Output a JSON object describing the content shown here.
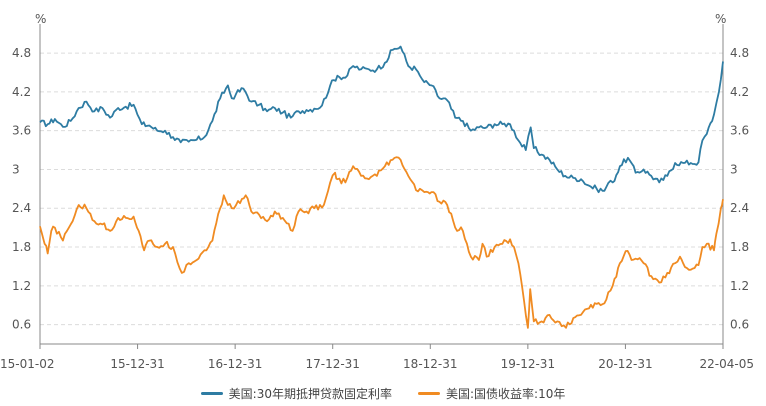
{
  "chart_data": {
    "type": "line",
    "title": "",
    "left_unit": "%",
    "right_unit": "%",
    "ylim": [
      0.3,
      5.25
    ],
    "y_ticks": [
      "0.6",
      "1.2",
      "1.8",
      "2.4",
      "3",
      "3.6",
      "4.2",
      "4.8"
    ],
    "x_ticks": [
      "15-01-02",
      "15-12-31",
      "16-12-31",
      "17-12-31",
      "18-12-31",
      "19-12-31",
      "20-12-31",
      "22-04-05"
    ],
    "grid": true,
    "legend_position": "bottom",
    "series": [
      {
        "name": "美国:30年期抵押贷款固定利率",
        "color": "#2e7ca3",
        "points": [
          [
            "2015-01-02",
            3.73
          ],
          [
            "2015-02-01",
            3.7
          ],
          [
            "2015-03-01",
            3.78
          ],
          [
            "2015-04-01",
            3.66
          ],
          [
            "2015-05-01",
            3.75
          ],
          [
            "2015-06-01",
            3.95
          ],
          [
            "2015-07-01",
            4.05
          ],
          [
            "2015-08-01",
            3.9
          ],
          [
            "2015-09-01",
            3.95
          ],
          [
            "2015-10-01",
            3.8
          ],
          [
            "2015-11-01",
            3.95
          ],
          [
            "2015-12-01",
            3.97
          ],
          [
            "2015-12-31",
            4.0
          ],
          [
            "2016-01-15",
            3.85
          ],
          [
            "2016-02-01",
            3.7
          ],
          [
            "2016-03-01",
            3.68
          ],
          [
            "2016-04-01",
            3.6
          ],
          [
            "2016-05-01",
            3.6
          ],
          [
            "2016-06-01",
            3.5
          ],
          [
            "2016-07-01",
            3.42
          ],
          [
            "2016-08-01",
            3.43
          ],
          [
            "2016-09-01",
            3.46
          ],
          [
            "2016-10-01",
            3.5
          ],
          [
            "2016-11-01",
            3.75
          ],
          [
            "2016-12-01",
            4.1
          ],
          [
            "2016-12-31",
            4.3
          ],
          [
            "2017-01-15",
            4.1
          ],
          [
            "2017-02-01",
            4.17
          ],
          [
            "2017-03-01",
            4.25
          ],
          [
            "2017-04-01",
            4.05
          ],
          [
            "2017-05-01",
            4.0
          ],
          [
            "2017-06-01",
            3.9
          ],
          [
            "2017-07-01",
            3.95
          ],
          [
            "2017-08-01",
            3.88
          ],
          [
            "2017-09-01",
            3.8
          ],
          [
            "2017-10-01",
            3.9
          ],
          [
            "2017-11-01",
            3.92
          ],
          [
            "2017-12-01",
            3.94
          ],
          [
            "2017-12-31",
            3.99
          ],
          [
            "2018-02-01",
            4.3
          ],
          [
            "2018-03-01",
            4.45
          ],
          [
            "2018-04-01",
            4.42
          ],
          [
            "2018-05-01",
            4.6
          ],
          [
            "2018-06-01",
            4.55
          ],
          [
            "2018-07-01",
            4.55
          ],
          [
            "2018-08-01",
            4.55
          ],
          [
            "2018-09-01",
            4.65
          ],
          [
            "2018-10-01",
            4.85
          ],
          [
            "2018-11-01",
            4.9
          ],
          [
            "2018-12-01",
            4.6
          ],
          [
            "2018-12-31",
            4.55
          ],
          [
            "2019-01-15",
            4.45
          ],
          [
            "2019-02-01",
            4.35
          ],
          [
            "2019-03-01",
            4.3
          ],
          [
            "2019-04-01",
            4.1
          ],
          [
            "2019-05-01",
            4.07
          ],
          [
            "2019-06-01",
            3.8
          ],
          [
            "2019-07-01",
            3.75
          ],
          [
            "2019-08-01",
            3.6
          ],
          [
            "2019-09-01",
            3.65
          ],
          [
            "2019-10-01",
            3.65
          ],
          [
            "2019-11-01",
            3.7
          ],
          [
            "2019-12-01",
            3.7
          ],
          [
            "2019-12-31",
            3.7
          ],
          [
            "2020-01-15",
            3.6
          ],
          [
            "2020-02-01",
            3.45
          ],
          [
            "2020-03-01",
            3.3
          ],
          [
            "2020-03-20",
            3.65
          ],
          [
            "2020-04-01",
            3.33
          ],
          [
            "2020-05-01",
            3.23
          ],
          [
            "2020-06-01",
            3.15
          ],
          [
            "2020-07-01",
            3.0
          ],
          [
            "2020-08-01",
            2.9
          ],
          [
            "2020-09-01",
            2.87
          ],
          [
            "2020-10-01",
            2.85
          ],
          [
            "2020-11-01",
            2.75
          ],
          [
            "2020-12-01",
            2.7
          ],
          [
            "2020-12-31",
            2.67
          ],
          [
            "2021-01-15",
            2.79
          ],
          [
            "2021-02-01",
            2.8
          ],
          [
            "2021-03-01",
            3.05
          ],
          [
            "2021-04-01",
            3.18
          ],
          [
            "2021-05-01",
            2.95
          ],
          [
            "2021-06-01",
            3.0
          ],
          [
            "2021-07-01",
            2.9
          ],
          [
            "2021-08-01",
            2.8
          ],
          [
            "2021-09-01",
            2.9
          ],
          [
            "2021-10-01",
            3.1
          ],
          [
            "2021-11-01",
            3.1
          ],
          [
            "2021-12-01",
            3.1
          ],
          [
            "2021-12-31",
            3.11
          ],
          [
            "2022-01-15",
            3.45
          ],
          [
            "2022-02-01",
            3.55
          ],
          [
            "2022-03-01",
            3.85
          ],
          [
            "2022-03-20",
            4.2
          ],
          [
            "2022-04-05",
            4.67
          ]
        ]
      },
      {
        "name": "美国:国债收益率:10年",
        "color": "#f08b22",
        "points": [
          [
            "2015-01-02",
            2.12
          ],
          [
            "2015-01-20",
            1.85
          ],
          [
            "2015-02-01",
            1.7
          ],
          [
            "2015-02-15",
            2.05
          ],
          [
            "2015-03-01",
            2.1
          ],
          [
            "2015-04-01",
            1.9
          ],
          [
            "2015-05-01",
            2.15
          ],
          [
            "2015-06-01",
            2.45
          ],
          [
            "2015-07-01",
            2.4
          ],
          [
            "2015-08-01",
            2.2
          ],
          [
            "2015-09-01",
            2.15
          ],
          [
            "2015-10-01",
            2.05
          ],
          [
            "2015-11-01",
            2.25
          ],
          [
            "2015-12-01",
            2.25
          ],
          [
            "2015-12-31",
            2.27
          ],
          [
            "2016-01-20",
            2.05
          ],
          [
            "2016-02-10",
            1.75
          ],
          [
            "2016-03-01",
            1.9
          ],
          [
            "2016-04-01",
            1.8
          ],
          [
            "2016-05-01",
            1.85
          ],
          [
            "2016-06-01",
            1.8
          ],
          [
            "2016-07-05",
            1.4
          ],
          [
            "2016-08-01",
            1.55
          ],
          [
            "2016-09-01",
            1.6
          ],
          [
            "2016-10-01",
            1.75
          ],
          [
            "2016-11-01",
            1.9
          ],
          [
            "2016-12-01",
            2.4
          ],
          [
            "2016-12-15",
            2.6
          ],
          [
            "2016-12-31",
            2.45
          ],
          [
            "2017-01-15",
            2.4
          ],
          [
            "2017-02-01",
            2.45
          ],
          [
            "2017-03-10",
            2.6
          ],
          [
            "2017-04-01",
            2.35
          ],
          [
            "2017-05-01",
            2.3
          ],
          [
            "2017-06-01",
            2.2
          ],
          [
            "2017-07-01",
            2.35
          ],
          [
            "2017-08-01",
            2.25
          ],
          [
            "2017-09-08",
            2.05
          ],
          [
            "2017-10-01",
            2.35
          ],
          [
            "2017-11-01",
            2.35
          ],
          [
            "2017-12-01",
            2.4
          ],
          [
            "2017-12-31",
            2.41
          ],
          [
            "2018-01-15",
            2.55
          ],
          [
            "2018-02-01",
            2.8
          ],
          [
            "2018-02-20",
            2.95
          ],
          [
            "2018-03-01",
            2.85
          ],
          [
            "2018-04-01",
            2.8
          ],
          [
            "2018-05-01",
            3.05
          ],
          [
            "2018-06-01",
            2.9
          ],
          [
            "2018-07-01",
            2.85
          ],
          [
            "2018-08-01",
            2.9
          ],
          [
            "2018-09-01",
            3.05
          ],
          [
            "2018-10-01",
            3.15
          ],
          [
            "2018-11-01",
            3.15
          ],
          [
            "2018-12-01",
            2.9
          ],
          [
            "2018-12-31",
            2.68
          ],
          [
            "2019-01-15",
            2.7
          ],
          [
            "2019-02-01",
            2.65
          ],
          [
            "2019-03-01",
            2.65
          ],
          [
            "2019-04-01",
            2.5
          ],
          [
            "2019-05-01",
            2.45
          ],
          [
            "2019-06-01",
            2.1
          ],
          [
            "2019-07-01",
            2.05
          ],
          [
            "2019-08-01",
            1.65
          ],
          [
            "2019-09-01",
            1.6
          ],
          [
            "2019-09-15",
            1.85
          ],
          [
            "2019-10-01",
            1.65
          ],
          [
            "2019-11-01",
            1.8
          ],
          [
            "2019-12-01",
            1.85
          ],
          [
            "2019-12-31",
            1.92
          ],
          [
            "2020-01-15",
            1.8
          ],
          [
            "2020-02-01",
            1.55
          ],
          [
            "2020-03-09",
            0.55
          ],
          [
            "2020-03-18",
            1.15
          ],
          [
            "2020-04-01",
            0.65
          ],
          [
            "2020-05-01",
            0.65
          ],
          [
            "2020-06-01",
            0.75
          ],
          [
            "2020-07-01",
            0.65
          ],
          [
            "2020-08-04",
            0.55
          ],
          [
            "2020-09-01",
            0.7
          ],
          [
            "2020-10-01",
            0.75
          ],
          [
            "2020-11-01",
            0.85
          ],
          [
            "2020-12-01",
            0.92
          ],
          [
            "2020-12-31",
            0.93
          ],
          [
            "2021-01-15",
            1.1
          ],
          [
            "2021-02-01",
            1.2
          ],
          [
            "2021-03-01",
            1.55
          ],
          [
            "2021-03-31",
            1.74
          ],
          [
            "2021-04-15",
            1.6
          ],
          [
            "2021-05-01",
            1.62
          ],
          [
            "2021-06-01",
            1.55
          ],
          [
            "2021-07-01",
            1.35
          ],
          [
            "2021-08-01",
            1.25
          ],
          [
            "2021-09-01",
            1.4
          ],
          [
            "2021-10-01",
            1.55
          ],
          [
            "2021-10-20",
            1.65
          ],
          [
            "2021-11-01",
            1.55
          ],
          [
            "2021-12-01",
            1.45
          ],
          [
            "2021-12-31",
            1.52
          ],
          [
            "2022-01-15",
            1.8
          ],
          [
            "2022-02-01",
            1.85
          ],
          [
            "2022-03-01",
            1.75
          ],
          [
            "2022-03-10",
            2.0
          ],
          [
            "2022-03-28",
            2.4
          ],
          [
            "2022-04-05",
            2.54
          ]
        ]
      }
    ]
  }
}
